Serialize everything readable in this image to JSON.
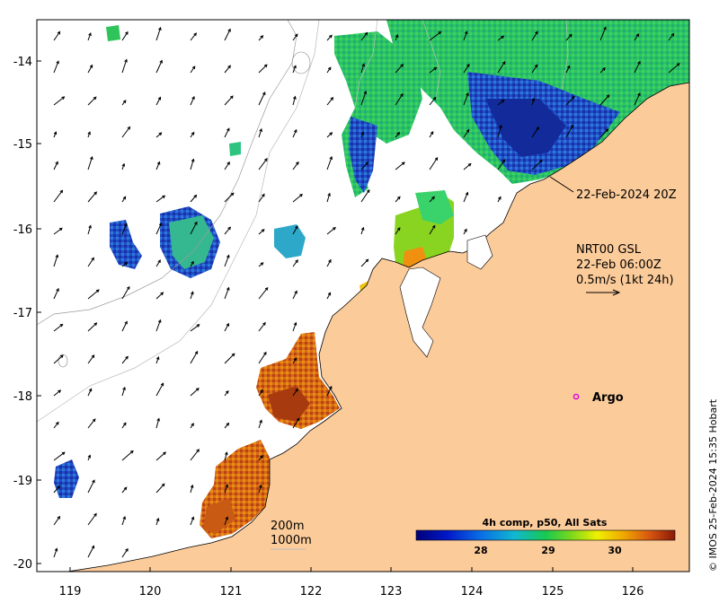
{
  "map": {
    "x_ticks": [
      "119",
      "120",
      "121",
      "122",
      "123",
      "124",
      "125",
      "126"
    ],
    "y_ticks": [
      "-14",
      "-15",
      "-16",
      "-17",
      "-18",
      "-19",
      "-20"
    ],
    "annotation_time": "22-Feb-2024 20Z",
    "current_label": {
      "line1": "NRT00 GSL",
      "line2": "22-Feb 06:00Z",
      "line3": "0.5m/s (1kt 24h)"
    },
    "argo_label": "Argo",
    "depth_labels": [
      "200m",
      "1000m"
    ],
    "colorbar": {
      "title": "4h comp, p50, All Sats",
      "ticks": [
        "28",
        "29",
        "30"
      ]
    },
    "credit": "© IMOS 25-Feb-2024 15:35 Hobart",
    "colors": {
      "land": "#fbcb9a",
      "argo": "#e000e0",
      "warm_sst": "#a83a10",
      "cool_sst": "#0a1a8c"
    }
  }
}
